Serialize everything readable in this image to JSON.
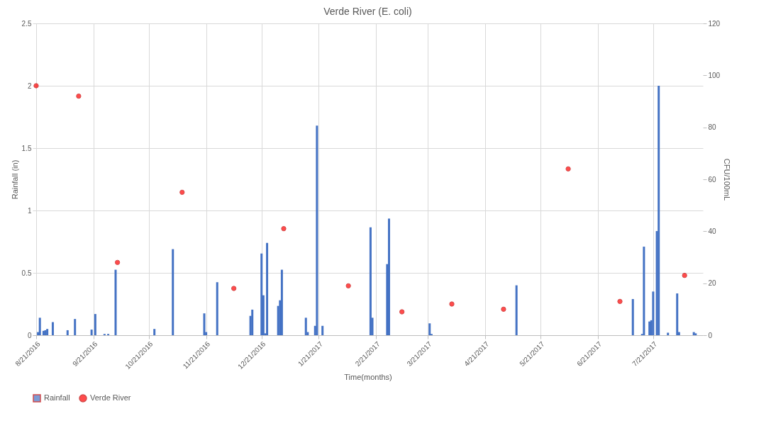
{
  "chart_data": {
    "type": "bar",
    "title": "Verde River (E. coli)",
    "xlabel": "Time(months)",
    "ylabel": "Rainfall (in)",
    "y2label": "CFU/100mL",
    "xlim": [
      "2016-08-21",
      "2017-08-15"
    ],
    "xticks": [
      {
        "value": "2016-08-21",
        "label": "8/21/2016"
      },
      {
        "value": "2016-09-21",
        "label": "9/21/2016"
      },
      {
        "value": "2016-10-21",
        "label": "10/21/2016"
      },
      {
        "value": "2016-11-21",
        "label": "11/21/2016"
      },
      {
        "value": "2016-12-21",
        "label": "12/21/2016"
      },
      {
        "value": "2017-01-21",
        "label": "1/21/2017"
      },
      {
        "value": "2017-02-21",
        "label": "2/21/2017"
      },
      {
        "value": "2017-03-21",
        "label": "3/21/2017"
      },
      {
        "value": "2017-04-21",
        "label": "4/21/2017"
      },
      {
        "value": "2017-05-21",
        "label": "5/21/2017"
      },
      {
        "value": "2017-06-21",
        "label": "6/21/2017"
      },
      {
        "value": "2017-07-21",
        "label": "7/21/2017"
      }
    ],
    "ylim": [
      0,
      2.5
    ],
    "yticks": [
      0,
      0.5,
      1,
      1.5,
      2,
      2.5
    ],
    "y2lim": [
      0,
      120
    ],
    "y2ticks": [
      0,
      20,
      40,
      60,
      80,
      100,
      120
    ],
    "grid": true,
    "legend": "bottom",
    "series": [
      {
        "name": "Rainfall",
        "color": "#4472c4",
        "x": [
          "2016-08-22",
          "2016-08-23",
          "2016-08-25",
          "2016-08-26",
          "2016-08-27",
          "2016-08-30",
          "2016-09-07",
          "2016-09-11",
          "2016-09-20",
          "2016-09-22",
          "2016-09-27",
          "2016-09-29",
          "2016-10-03",
          "2016-10-24",
          "2016-11-03",
          "2016-11-20",
          "2016-11-21",
          "2016-11-27",
          "2016-12-15",
          "2016-12-16",
          "2016-12-21",
          "2016-12-22",
          "2016-12-23",
          "2016-12-24",
          "2016-12-30",
          "2016-12-31",
          "2017-01-01",
          "2017-01-14",
          "2017-01-15",
          "2017-01-19",
          "2017-01-20",
          "2017-01-23",
          "2017-02-18",
          "2017-02-19",
          "2017-02-27",
          "2017-02-28",
          "2017-03-22",
          "2017-03-23",
          "2017-05-08",
          "2017-07-10",
          "2017-07-15",
          "2017-07-16",
          "2017-07-19",
          "2017-07-20",
          "2017-07-21",
          "2017-07-23",
          "2017-07-24",
          "2017-07-29",
          "2017-08-03",
          "2017-08-04",
          "2017-08-12",
          "2017-08-13"
        ],
        "values": [
          0.025,
          0.14,
          0.035,
          0.04,
          0.05,
          0.105,
          0.04,
          0.13,
          0.045,
          0.17,
          0.01,
          0.01,
          0.525,
          0.05,
          0.69,
          0.175,
          0.025,
          0.425,
          0.155,
          0.205,
          0.655,
          0.32,
          0.015,
          0.74,
          0.235,
          0.28,
          0.525,
          0.14,
          0.025,
          0.075,
          1.68,
          0.075,
          0.865,
          0.14,
          0.57,
          0.935,
          0.095,
          0.01,
          0.4,
          0.29,
          0.01,
          0.71,
          0.11,
          0.12,
          0.35,
          0.835,
          2.0,
          0.02,
          0.335,
          0.025,
          0.025,
          0.015
        ]
      },
      {
        "name": "Verde River",
        "type": "scatter",
        "axis": "y2",
        "color": "#ff0000",
        "marker": "circle",
        "x": [
          "2016-08-21",
          "2016-09-13",
          "2016-10-04",
          "2016-11-08",
          "2016-12-06",
          "2017-01-02",
          "2017-02-06",
          "2017-03-07",
          "2017-04-03",
          "2017-05-01",
          "2017-06-05",
          "2017-07-03",
          "2017-08-07"
        ],
        "values": [
          96,
          92,
          28,
          55,
          18,
          41,
          19,
          9,
          12,
          10,
          64,
          13,
          23
        ]
      }
    ]
  }
}
